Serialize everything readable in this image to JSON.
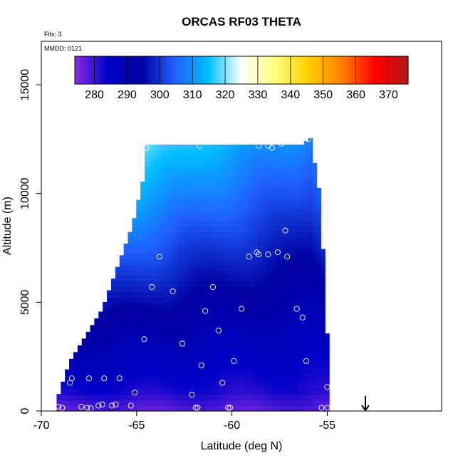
{
  "chart_data": {
    "type": "heatmap",
    "title": "ORCAS RF03 THETA",
    "annotations": {
      "flights": "Flts: 3",
      "date": "MMDD: 0121"
    },
    "xlabel": "Latitude (deg N)",
    "ylabel": "Altitude (m)",
    "xlim": [
      -70,
      -49
    ],
    "ylim": [
      0,
      17000
    ],
    "x_ticks": [
      -70,
      -65,
      -60,
      -55
    ],
    "x_tick_labels": [
      "-70",
      "-65",
      "-60",
      "-55"
    ],
    "y_ticks": [
      0,
      5000,
      10000,
      15000
    ],
    "y_tick_labels": [
      "0",
      "5000",
      "10000",
      "15000"
    ],
    "colorbar": {
      "range": [
        274,
        376
      ],
      "ticks": [
        280,
        290,
        300,
        310,
        320,
        330,
        340,
        350,
        360,
        370
      ],
      "tick_labels": [
        "280",
        "290",
        "300",
        "310",
        "320",
        "330",
        "340",
        "350",
        "360",
        "370"
      ],
      "colors": [
        "#8a2be2",
        "#0000c8",
        "#0000a0",
        "#2060ff",
        "#00bfff",
        "#ffffff",
        "#ffff80",
        "#ffd000",
        "#ff8000",
        "#ff0000",
        "#b01818"
      ]
    },
    "field": {
      "lat_start": -69.2,
      "lat_end": -54.9,
      "col_width_deg": 0.22,
      "row_height_m": 250,
      "left_edge_top": [
        [
          -69.2,
          500
        ],
        [
          -68.5,
          2300
        ],
        [
          -66.8,
          4700
        ],
        [
          -65.2,
          8600
        ],
        [
          -64.6,
          10900
        ],
        [
          -64.6,
          12250
        ]
      ],
      "right_edge_top": [
        [
          -56.3,
          12250
        ],
        [
          -55.9,
          12600
        ],
        [
          -55.4,
          10000
        ],
        [
          -55.1,
          5500
        ],
        [
          -54.9,
          1200
        ]
      ]
    },
    "marker_color": "#ffffff",
    "arrow_marker": {
      "lat": -53,
      "alt": 700
    },
    "observations": [
      {
        "lat": -69.1,
        "alt": 200
      },
      {
        "lat": -68.9,
        "alt": 150
      },
      {
        "lat": -68.5,
        "alt": 1300
      },
      {
        "lat": -68.4,
        "alt": 1500
      },
      {
        "lat": -67.9,
        "alt": 200
      },
      {
        "lat": -67.6,
        "alt": 150
      },
      {
        "lat": -67.4,
        "alt": 120
      },
      {
        "lat": -67.0,
        "alt": 250
      },
      {
        "lat": -66.8,
        "alt": 300
      },
      {
        "lat": -66.3,
        "alt": 250
      },
      {
        "lat": -66.1,
        "alt": 300
      },
      {
        "lat": -67.5,
        "alt": 1500
      },
      {
        "lat": -66.7,
        "alt": 1500
      },
      {
        "lat": -65.9,
        "alt": 1500
      },
      {
        "lat": -65.3,
        "alt": 250
      },
      {
        "lat": -65.1,
        "alt": 850
      },
      {
        "lat": -64.6,
        "alt": 3300
      },
      {
        "lat": -64.2,
        "alt": 5700
      },
      {
        "lat": -63.8,
        "alt": 7100
      },
      {
        "lat": -63.1,
        "alt": 5500
      },
      {
        "lat": -62.6,
        "alt": 3100
      },
      {
        "lat": -62.1,
        "alt": 750
      },
      {
        "lat": -61.9,
        "alt": 150
      },
      {
        "lat": -61.8,
        "alt": 150
      },
      {
        "lat": -61.6,
        "alt": 2100
      },
      {
        "lat": -61.4,
        "alt": 4600
      },
      {
        "lat": -61.0,
        "alt": 5700
      },
      {
        "lat": -60.7,
        "alt": 3700
      },
      {
        "lat": -60.5,
        "alt": 1300
      },
      {
        "lat": -60.2,
        "alt": 150
      },
      {
        "lat": -60.1,
        "alt": 150
      },
      {
        "lat": -59.9,
        "alt": 2300
      },
      {
        "lat": -59.5,
        "alt": 4700
      },
      {
        "lat": -59.1,
        "alt": 7100
      },
      {
        "lat": -58.7,
        "alt": 7300
      },
      {
        "lat": -58.6,
        "alt": 7200
      },
      {
        "lat": -58.1,
        "alt": 7200
      },
      {
        "lat": -57.6,
        "alt": 7300
      },
      {
        "lat": -57.2,
        "alt": 8300
      },
      {
        "lat": -57.1,
        "alt": 7100
      },
      {
        "lat": -56.6,
        "alt": 4700
      },
      {
        "lat": -56.3,
        "alt": 4300
      },
      {
        "lat": -56.1,
        "alt": 2300
      },
      {
        "lat": -55.3,
        "alt": 150
      },
      {
        "lat": -55.0,
        "alt": 150
      },
      {
        "lat": -55.0,
        "alt": 1100
      },
      {
        "lat": -64.5,
        "alt": 12100
      },
      {
        "lat": -61.7,
        "alt": 12200
      },
      {
        "lat": -58.6,
        "alt": 12200
      },
      {
        "lat": -58.1,
        "alt": 12200
      },
      {
        "lat": -57.9,
        "alt": 12100
      },
      {
        "lat": -57.4,
        "alt": 12300
      },
      {
        "lat": -56.0,
        "alt": 12500
      }
    ]
  }
}
